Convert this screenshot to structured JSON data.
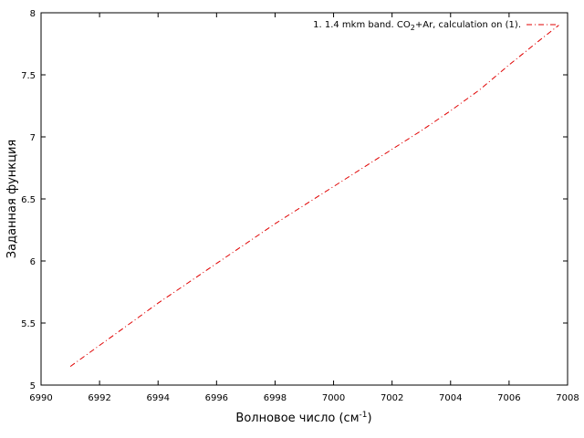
{
  "chart_data": {
    "type": "line",
    "xlabel": "Волновое число (см",
    "xlabel_sup": "-1",
    "xlabel_end": ")",
    "ylabel": "Заданная функция",
    "xlim": [
      6990,
      7008
    ],
    "ylim": [
      5,
      8
    ],
    "x_ticks": [
      6990,
      6992,
      6994,
      6996,
      6998,
      7000,
      7002,
      7004,
      7006,
      7008
    ],
    "x_tick_labels": [
      "6990",
      "6992",
      "6994",
      "6996",
      "6998",
      "7000",
      "7002",
      "7004",
      "7006",
      "7008"
    ],
    "y_ticks": [
      5,
      5.5,
      6,
      6.5,
      7,
      7.5,
      8
    ],
    "y_tick_labels": [
      "5",
      "5.5",
      "6",
      "6.5",
      "7",
      "7.5",
      "8"
    ],
    "grid": false,
    "legend_position": "top-right",
    "series": [
      {
        "name": "1. 1.4 mkm band. CO2+Ar, calculation on (1).",
        "legend_parts": [
          "1. 1.4 mkm band. CO",
          "2",
          "+Ar, calculation on (1)."
        ],
        "color": "#e00000",
        "line_style": "dash-dot",
        "x": [
          6991.0,
          6992.0,
          6993.0,
          6994.0,
          6995.0,
          6996.0,
          6997.0,
          6998.0,
          6999.0,
          7000.0,
          7001.0,
          7002.0,
          7003.0,
          7004.0,
          7005.0,
          7006.0,
          7007.0,
          7007.7
        ],
        "y": [
          5.15,
          5.32,
          5.49,
          5.66,
          5.82,
          5.98,
          6.14,
          6.3,
          6.45,
          6.6,
          6.75,
          6.9,
          7.05,
          7.21,
          7.38,
          7.58,
          7.77,
          7.9
        ]
      }
    ]
  }
}
